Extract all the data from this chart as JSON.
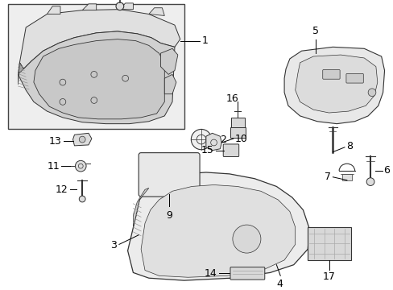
{
  "bg_color": "#ffffff",
  "line_color": "#000000",
  "part_color": "#333333",
  "fill_light": "#f5f5f5",
  "fill_mid": "#e8e8e8",
  "fig_width": 4.89,
  "fig_height": 3.6,
  "dpi": 100,
  "font_size": 9,
  "lw_main": 0.8,
  "lw_thin": 0.5
}
